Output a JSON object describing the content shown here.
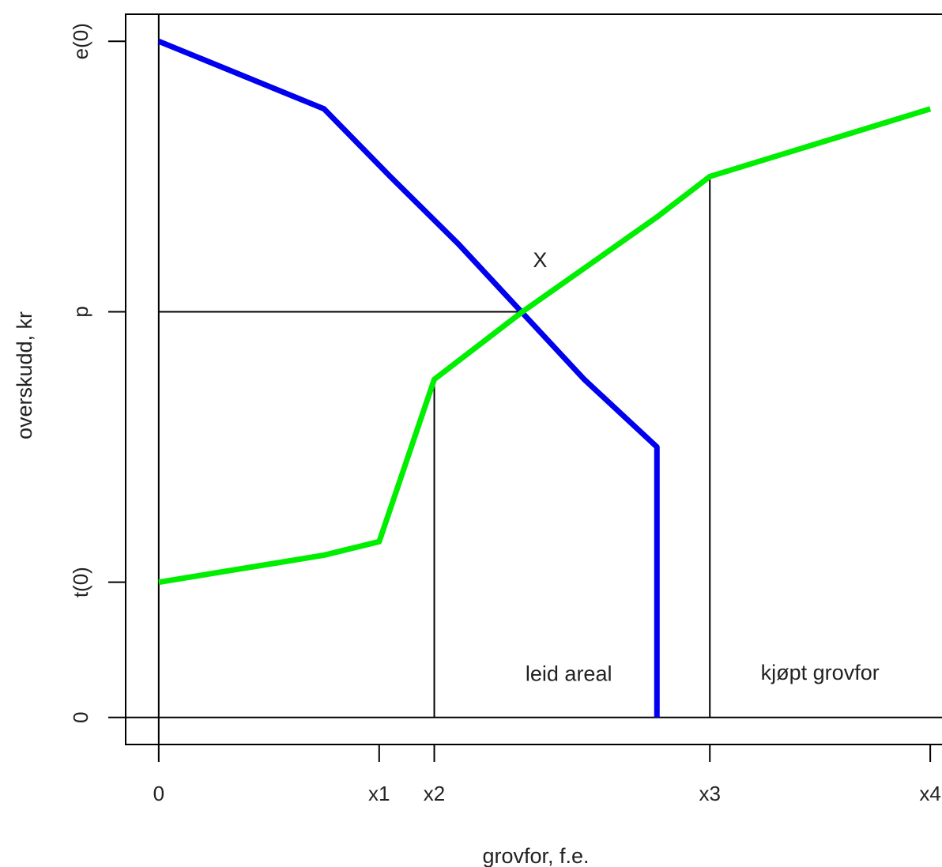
{
  "chart_data": {
    "type": "line",
    "title": "",
    "xlabel": "grovfor, f.e.",
    "ylabel": "overskudd, kr",
    "xlim": [
      -1.5,
      36.5
    ],
    "ylim": [
      -2,
      52
    ],
    "grid": false,
    "legend": "none",
    "x_ticks": [
      {
        "value": 0,
        "label": "0"
      },
      {
        "value": 10,
        "label": "x1"
      },
      {
        "value": 12.5,
        "label": "x2"
      },
      {
        "value": 25,
        "label": "x3"
      },
      {
        "value": 35,
        "label": "x4"
      }
    ],
    "y_ticks": [
      {
        "value": 0,
        "label": "0"
      },
      {
        "value": 10,
        "label": "t(0)"
      },
      {
        "value": 30,
        "label": "p"
      },
      {
        "value": 50,
        "label": "e(0)"
      }
    ],
    "series": [
      {
        "color": "#0000ee",
        "points": [
          [
            0,
            50
          ],
          [
            7.5,
            45
          ],
          [
            10.5,
            40
          ],
          [
            13.6,
            35
          ],
          [
            19.3,
            25
          ],
          [
            22.6,
            20
          ],
          [
            22.6,
            0
          ]
        ]
      },
      {
        "color": "#00ee00",
        "points": [
          [
            0,
            10
          ],
          [
            7.5,
            12
          ],
          [
            10,
            13
          ],
          [
            12.5,
            25
          ],
          [
            16.5,
            30
          ],
          [
            22.6,
            37
          ],
          [
            25,
            40
          ],
          [
            35,
            45
          ]
        ]
      }
    ],
    "reference_lines": [
      {
        "from": [
          -1.5,
          0
        ],
        "to": [
          36.5,
          0
        ]
      },
      {
        "from": [
          0,
          -2
        ],
        "to": [
          0,
          52
        ]
      },
      {
        "from": [
          0,
          30
        ],
        "to": [
          16.5,
          30
        ]
      },
      {
        "from": [
          12.5,
          0
        ],
        "to": [
          12.5,
          25
        ]
      },
      {
        "from": [
          25,
          0
        ],
        "to": [
          25,
          40
        ]
      }
    ],
    "annotations": [
      {
        "text": "X",
        "x": 17.3,
        "y": 33.3
      },
      {
        "text": "leid areal",
        "x": 18.6,
        "y": 2.7
      },
      {
        "text": "kjøpt grovfor",
        "x": 30,
        "y": 2.8
      }
    ]
  }
}
